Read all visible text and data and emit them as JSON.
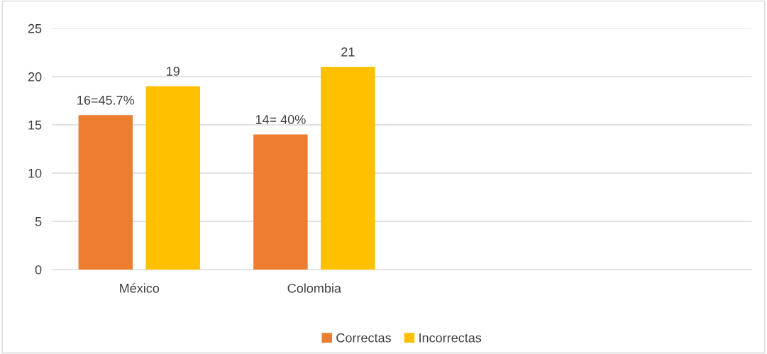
{
  "chart_data": {
    "type": "bar",
    "categories": [
      "México",
      "Colombia",
      null,
      null
    ],
    "series": [
      {
        "name": "Correctas",
        "color": "#ed7d31",
        "values": [
          16,
          14,
          null,
          null
        ],
        "value_labels": [
          "16=45.7%",
          "14= 40%",
          null,
          null
        ]
      },
      {
        "name": "Incorrectas",
        "color": "#ffc000",
        "values": [
          19,
          21,
          null,
          null
        ],
        "value_labels": [
          "19",
          "21",
          null,
          null
        ]
      }
    ],
    "ylim": [
      0,
      25
    ],
    "yticks": [
      0,
      5,
      10,
      15,
      20,
      25
    ],
    "grid": "y",
    "legend": "bottom"
  }
}
